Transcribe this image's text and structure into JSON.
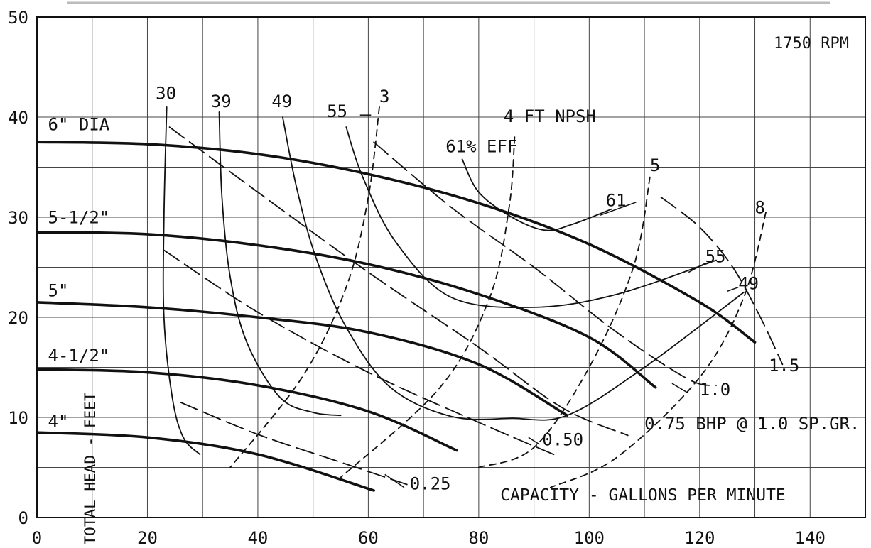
{
  "chart_data": {
    "type": "line",
    "title": "1750 RPM",
    "xlabel": "CAPACITY - GALLONS PER MINUTE",
    "ylabel": "TOTAL HEAD - FEET",
    "xlim": [
      0,
      150
    ],
    "ylim": [
      0,
      50
    ],
    "xticks": [
      0,
      20,
      40,
      60,
      80,
      100,
      120,
      140
    ],
    "yticks": [
      0,
      10,
      20,
      30,
      40,
      50
    ],
    "grid": true,
    "impeller_curves": [
      {
        "name": "6\" DIA",
        "points": [
          [
            0,
            37.5
          ],
          [
            20,
            37.3
          ],
          [
            40,
            36.3
          ],
          [
            60,
            34.3
          ],
          [
            80,
            31.4
          ],
          [
            100,
            27.3
          ],
          [
            120,
            21.5
          ],
          [
            130,
            17.5
          ]
        ]
      },
      {
        "name": "5-1/2\"",
        "points": [
          [
            0,
            28.5
          ],
          [
            20,
            28.3
          ],
          [
            40,
            27.2
          ],
          [
            60,
            25.3
          ],
          [
            80,
            22.3
          ],
          [
            100,
            18.0
          ],
          [
            112,
            13.0
          ]
        ]
      },
      {
        "name": "5\"",
        "points": [
          [
            0,
            21.5
          ],
          [
            20,
            21.0
          ],
          [
            40,
            20.0
          ],
          [
            60,
            18.5
          ],
          [
            80,
            15.3
          ],
          [
            96,
            10.2
          ]
        ]
      },
      {
        "name": "4-1/2\"",
        "points": [
          [
            0,
            14.8
          ],
          [
            20,
            14.5
          ],
          [
            40,
            13.2
          ],
          [
            60,
            10.6
          ],
          [
            76,
            6.7
          ]
        ]
      },
      {
        "name": "4\"",
        "points": [
          [
            0,
            8.5
          ],
          [
            20,
            8.0
          ],
          [
            40,
            6.3
          ],
          [
            61,
            2.7
          ]
        ]
      }
    ],
    "efficiency_curves": [
      {
        "name": "30",
        "points": [
          [
            23.5,
            41
          ],
          [
            23,
            30
          ],
          [
            23,
            20
          ],
          [
            24.5,
            12
          ],
          [
            26.5,
            8
          ],
          [
            29.5,
            6.3
          ]
        ]
      },
      {
        "name": "39",
        "points": [
          [
            33,
            40.5
          ],
          [
            33.5,
            32
          ],
          [
            35,
            24
          ],
          [
            38,
            17.5
          ],
          [
            44,
            12
          ],
          [
            50,
            10.5
          ],
          [
            55,
            10.2
          ]
        ]
      },
      {
        "name": "49",
        "points": [
          [
            44.5,
            40
          ],
          [
            47,
            33
          ],
          [
            50.5,
            26
          ],
          [
            56,
            19
          ],
          [
            64,
            13
          ],
          [
            75,
            10.1
          ],
          [
            86,
            9.9
          ],
          [
            96,
            10.2
          ],
          [
            110,
            15
          ],
          [
            128,
            22.5
          ]
        ]
      },
      {
        "name": "55",
        "points": [
          [
            56,
            39
          ],
          [
            59,
            34
          ],
          [
            65,
            27.5
          ],
          [
            75,
            22
          ],
          [
            90,
            21
          ],
          [
            105,
            22.3
          ],
          [
            123,
            25.7
          ]
        ]
      },
      {
        "name": "61",
        "points": [
          [
            77,
            35.8
          ],
          [
            80,
            32.5
          ],
          [
            86,
            30
          ],
          [
            92,
            28.7
          ],
          [
            97,
            29.3
          ],
          [
            104,
            30.8
          ]
        ]
      }
    ],
    "npsh_curves": [
      {
        "name": "3",
        "points": [
          [
            62,
            41
          ],
          [
            60,
            32
          ],
          [
            56,
            23
          ],
          [
            48,
            14
          ],
          [
            35,
            5
          ]
        ]
      },
      {
        "name": "4",
        "points": [
          [
            86.5,
            38
          ],
          [
            85.5,
            31
          ],
          [
            82,
            22
          ],
          [
            73,
            13
          ],
          [
            55,
            4
          ]
        ]
      },
      {
        "name": "5",
        "points": [
          [
            111,
            34
          ],
          [
            108,
            25
          ],
          [
            100,
            15
          ],
          [
            90,
            7
          ],
          [
            80,
            5
          ]
        ]
      },
      {
        "name": "8",
        "points": [
          [
            132,
            30.5
          ],
          [
            128,
            22
          ],
          [
            120,
            14
          ],
          [
            105,
            6
          ],
          [
            93,
            3
          ]
        ]
      }
    ],
    "bhp_curves": [
      {
        "name": "0.25",
        "points": [
          [
            26,
            11.5
          ],
          [
            40,
            8.3
          ],
          [
            54,
            5.7
          ],
          [
            67,
            3.3
          ]
        ]
      },
      {
        "name": "0.50",
        "points": [
          [
            23,
            26.7
          ],
          [
            40,
            20.5
          ],
          [
            60,
            14.5
          ],
          [
            80,
            9.5
          ],
          [
            94,
            6.2
          ]
        ]
      },
      {
        "name": "0.75",
        "points": [
          [
            24,
            39
          ],
          [
            40,
            32.5
          ],
          [
            60,
            24.5
          ],
          [
            80,
            17
          ],
          [
            95,
            11
          ],
          [
            107,
            8.2
          ]
        ]
      },
      {
        "name": "1.0",
        "points": [
          [
            61,
            37.5
          ],
          [
            75,
            31
          ],
          [
            90,
            25
          ],
          [
            105,
            18.5
          ],
          [
            118,
            13.8
          ],
          [
            123,
            13.2
          ]
        ]
      },
      {
        "name": "1.5",
        "points": [
          [
            113,
            32
          ],
          [
            120,
            29
          ],
          [
            126,
            25
          ],
          [
            131,
            20
          ],
          [
            135,
            15.3
          ]
        ]
      }
    ],
    "annotations": [
      {
        "text": "6\" DIA",
        "x": 2,
        "y": 38.7
      },
      {
        "text": "5-1/2\"",
        "x": 2,
        "y": 29.4
      },
      {
        "text": "5\"",
        "x": 2,
        "y": 22.1
      },
      {
        "text": "4-1/2\"",
        "x": 2,
        "y": 15.6
      },
      {
        "text": "4\"",
        "x": 2,
        "y": 9.0
      },
      {
        "text": "30",
        "x": 21.5,
        "y": 41.8
      },
      {
        "text": "39",
        "x": 31.5,
        "y": 41.0
      },
      {
        "text": "49",
        "x": 42.5,
        "y": 41.0
      },
      {
        "text": "55",
        "x": 52.5,
        "y": 40.0
      },
      {
        "text": "3",
        "x": 62,
        "y": 41.5
      },
      {
        "text": "4 FT NPSH",
        "x": 84.5,
        "y": 39.5
      },
      {
        "text": "61% EFF",
        "x": 74,
        "y": 36.5
      },
      {
        "text": "5",
        "x": 111,
        "y": 34.6
      },
      {
        "text": "61",
        "x": 103,
        "y": 31.1
      },
      {
        "text": "8",
        "x": 130,
        "y": 30.4
      },
      {
        "text": "55",
        "x": 121,
        "y": 25.5
      },
      {
        "text": "49",
        "x": 127,
        "y": 22.8
      },
      {
        "text": "1.5",
        "x": 132.5,
        "y": 14.6
      },
      {
        "text": "1.0",
        "x": 120,
        "y": 12.2
      },
      {
        "text": "0.50",
        "x": 91.5,
        "y": 7.2
      },
      {
        "text": "0.75 BHP @ 1.0 SP.GR.",
        "x": 110,
        "y": 8.8
      },
      {
        "text": "0.25",
        "x": 67.5,
        "y": 2.8
      }
    ]
  }
}
